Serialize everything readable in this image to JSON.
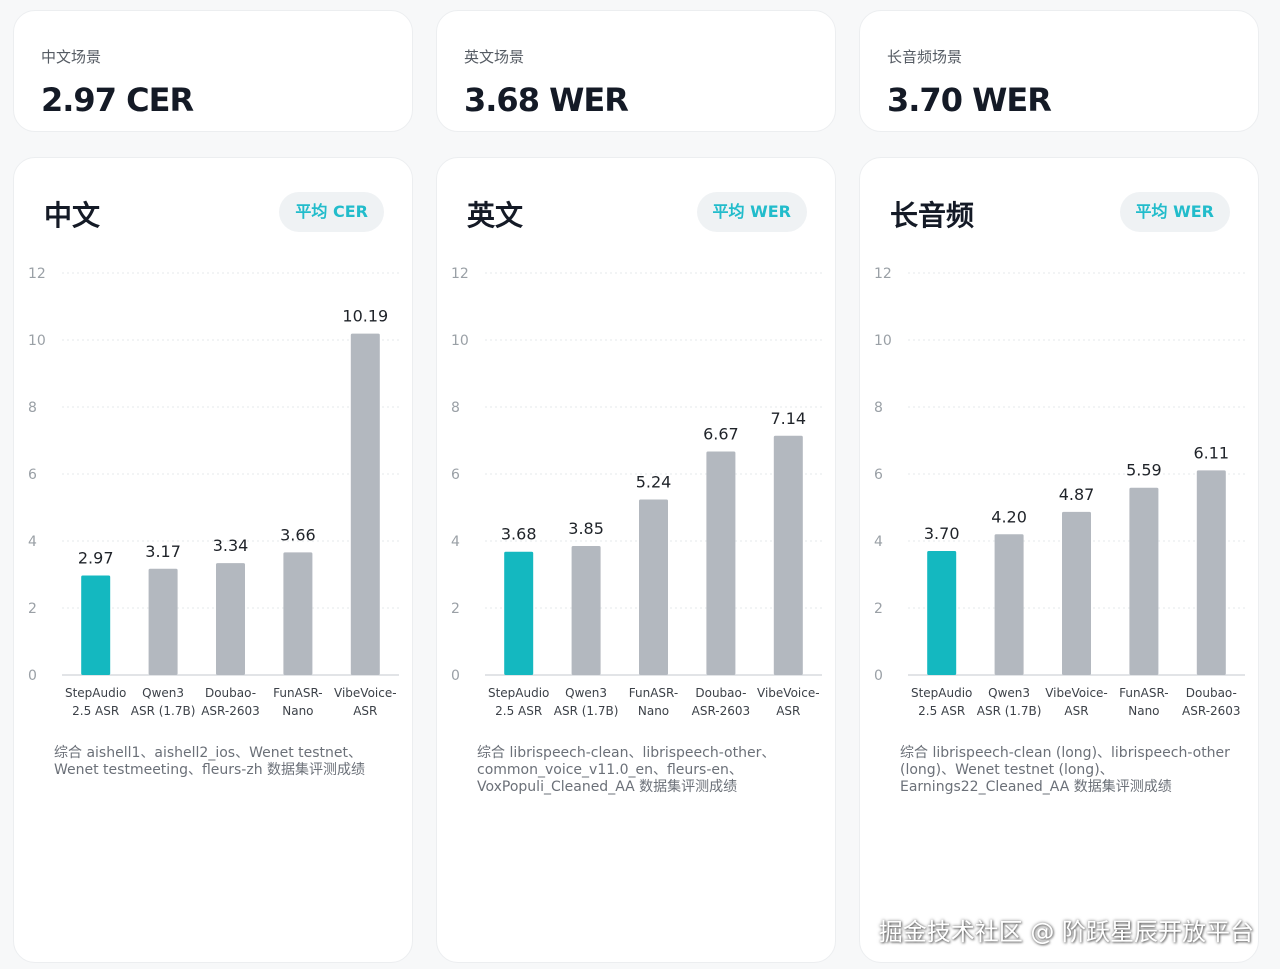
{
  "colors": {
    "highlight": "#14b8c0",
    "bar": "#b3b8bf",
    "pill_text": "#22bccb",
    "grid": "#e6e8eb"
  },
  "stats": [
    {
      "label": "中文场景",
      "value": "2.97 CER"
    },
    {
      "label": "英文场景",
      "value": "3.68 WER"
    },
    {
      "label": "长音频场景",
      "value": "3.70 WER"
    }
  ],
  "panels": [
    {
      "title": "中文",
      "badge": "平均 CER",
      "note": "综合 aishell1、aishell2_ios、Wenet testnet、Wenet testmeeting、fleurs-zh 数据集评测成绩"
    },
    {
      "title": "英文",
      "badge": "平均 WER",
      "note": "综合 librispeech-clean、librispeech-other、common_voice_v11.0_en、fleurs-en、VoxPopuli_Cleaned_AA 数据集评测成绩"
    },
    {
      "title": "长音频",
      "badge": "平均 WER",
      "note": "综合 librispeech-clean (long)、librispeech-other (long)、Wenet testnet (long)、Earnings22_Cleaned_AA 数据集评测成绩"
    }
  ],
  "chart_data": [
    {
      "type": "bar",
      "title": "中文",
      "categories": [
        "StepAudio 2.5 ASR",
        "Qwen3 ASR (1.7B)",
        "Doubao- ASR-2603",
        "FunASR- Nano",
        "VibeVoice- ASR"
      ],
      "category_lines": [
        [
          "StepAudio",
          "2.5 ASR"
        ],
        [
          "Qwen3",
          "ASR (1.7B)"
        ],
        [
          "Doubao-",
          "ASR-2603"
        ],
        [
          "FunASR-",
          "Nano"
        ],
        [
          "VibeVoice-",
          "ASR"
        ]
      ],
      "values": [
        2.97,
        3.17,
        3.34,
        3.66,
        10.19
      ],
      "value_labels": [
        "2.97",
        "3.17",
        "3.34",
        "3.66",
        "10.19"
      ],
      "highlight_index": 0,
      "ylim": [
        0,
        12
      ],
      "yticks": [
        "0",
        "2",
        "4",
        "6",
        "8",
        "10",
        "12"
      ],
      "grid": true
    },
    {
      "type": "bar",
      "title": "英文",
      "categories": [
        "StepAudio 2.5 ASR",
        "Qwen3 ASR (1.7B)",
        "FunASR- Nano",
        "Doubao- ASR-2603",
        "VibeVoice- ASR"
      ],
      "category_lines": [
        [
          "StepAudio",
          "2.5 ASR"
        ],
        [
          "Qwen3",
          "ASR (1.7B)"
        ],
        [
          "FunASR-",
          "Nano"
        ],
        [
          "Doubao-",
          "ASR-2603"
        ],
        [
          "VibeVoice-",
          "ASR"
        ]
      ],
      "values": [
        3.68,
        3.85,
        5.24,
        6.67,
        7.14
      ],
      "value_labels": [
        "3.68",
        "3.85",
        "5.24",
        "6.67",
        "7.14"
      ],
      "highlight_index": 0,
      "ylim": [
        0,
        12
      ],
      "yticks": [
        "0",
        "2",
        "4",
        "6",
        "8",
        "10",
        "12"
      ],
      "grid": true
    },
    {
      "type": "bar",
      "title": "长音频",
      "categories": [
        "StepAudio 2.5 ASR",
        "Qwen3 ASR (1.7B)",
        "VibeVoice- ASR",
        "FunASR- Nano",
        "Doubao- ASR-2603"
      ],
      "category_lines": [
        [
          "StepAudio",
          "2.5 ASR"
        ],
        [
          "Qwen3",
          "ASR (1.7B)"
        ],
        [
          "VibeVoice-",
          "ASR"
        ],
        [
          "FunASR-",
          "Nano"
        ],
        [
          "Doubao-",
          "ASR-2603"
        ]
      ],
      "values": [
        3.7,
        4.2,
        4.87,
        5.59,
        6.11
      ],
      "value_labels": [
        "3.70",
        "4.20",
        "4.87",
        "5.59",
        "6.11"
      ],
      "highlight_index": 0,
      "ylim": [
        0,
        12
      ],
      "yticks": [
        "0",
        "2",
        "4",
        "6",
        "8",
        "10",
        "12"
      ],
      "grid": true
    }
  ],
  "watermark": "掘金技术社区 @ 阶跃星辰开放平台"
}
